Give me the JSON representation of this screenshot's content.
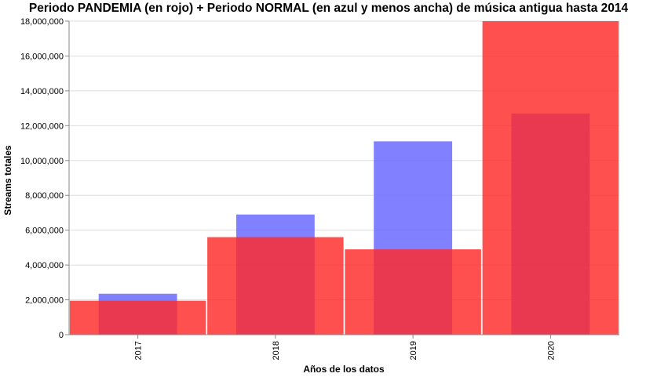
{
  "chart_data": {
    "type": "bar",
    "title": "Periodo PANDEMIA (en rojo) + Periodo NORMAL (en azul y menos ancha) de música antigua hasta 2014",
    "xlabel": "Años de los datos",
    "ylabel": "Streams totales",
    "categories": [
      "2017",
      "2018",
      "2019",
      "2020"
    ],
    "ylim": [
      0,
      18000000
    ],
    "yticks": [
      0,
      2000000,
      4000000,
      6000000,
      8000000,
      10000000,
      12000000,
      14000000,
      16000000,
      18000000
    ],
    "ytick_labels": [
      "0",
      "2,000,000",
      "4,000,000",
      "6,000,000",
      "8,000,000",
      "10,000,000",
      "12,000,000",
      "14,000,000",
      "16,000,000",
      "18,000,000"
    ],
    "grid": true,
    "series": [
      {
        "values": [
          2350000,
          6900000,
          11100000,
          12700000
        ],
        "color": "#6b6bff",
        "opacity": 0.85,
        "width": "narrow"
      },
      {
        "values": [
          1950000,
          5600000,
          4900000,
          18000000
        ],
        "color": "#ff2a2a",
        "opacity": 0.82,
        "width": "wide"
      }
    ]
  }
}
